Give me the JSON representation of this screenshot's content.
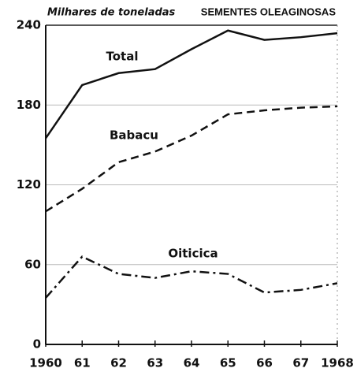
{
  "chart_data": {
    "type": "line",
    "title": "SEMENTES OLEAGINOSAS",
    "y_label": "Milhares de toneladas",
    "categories": [
      "1960",
      "61",
      "62",
      "63",
      "64",
      "65",
      "66",
      "67",
      "1968"
    ],
    "series": [
      {
        "name": "Total",
        "color": "#111111",
        "dash": "solid",
        "values": [
          155,
          195,
          204,
          207,
          222,
          236,
          229,
          231,
          234
        ]
      },
      {
        "name": "Babacu",
        "color": "#111111",
        "dash": "dashed",
        "values": [
          100,
          117,
          137,
          145,
          157,
          173,
          176,
          178,
          179
        ]
      },
      {
        "name": "Oiticica",
        "color": "#111111",
        "dash": "dashdot",
        "values": [
          35,
          66,
          53,
          50,
          55,
          53,
          39,
          41,
          46
        ]
      }
    ],
    "ylim": [
      0,
      240
    ],
    "yticks": [
      0,
      60,
      120,
      180,
      240
    ],
    "grid": true
  }
}
